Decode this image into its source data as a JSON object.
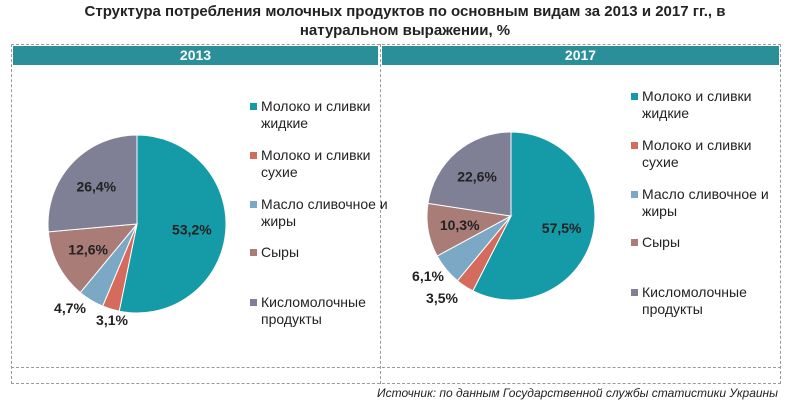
{
  "title": "Структура потребления молочных продуктов по основным видам за 2013 и 2017 гг., в натуральном выражении, %",
  "source": "Источник: по данным Государственной службы статистики Украины",
  "colors": {
    "band": "#2a8f99",
    "milk_liquid": "#159aa8",
    "milk_dry": "#d46b5c",
    "butter": "#7ba8c4",
    "cheese": "#a97c78",
    "sour_milk": "#7f7f95"
  },
  "chart_data": [
    {
      "type": "pie",
      "title": "2013",
      "legend_position": "right",
      "slices": [
        {
          "label": "Молоко и сливки жидкие",
          "value": 53.2,
          "value_label": "53,2%"
        },
        {
          "label": "Молоко и сливки сухие",
          "value": 3.1,
          "value_label": "3,1%"
        },
        {
          "label": "Масло сливочное и жиры",
          "value": 4.7,
          "value_label": "4,7%"
        },
        {
          "label": "Сыры",
          "value": 12.6,
          "value_label": "12,6%"
        },
        {
          "label": "Кисломолочные продукты",
          "value": 26.4,
          "value_label": "26,4%"
        }
      ]
    },
    {
      "type": "pie",
      "title": "2017",
      "legend_position": "right",
      "slices": [
        {
          "label": "Молоко и сливки жидкие",
          "value": 57.5,
          "value_label": "57,5%"
        },
        {
          "label": "Молоко и сливки сухие",
          "value": 3.5,
          "value_label": "3,5%"
        },
        {
          "label": "Масло сливочное и жиры",
          "value": 6.1,
          "value_label": "6,1%"
        },
        {
          "label": "Сыры",
          "value": 10.3,
          "value_label": "10,3%"
        },
        {
          "label": "Кисломолочные продукты",
          "value": 22.6,
          "value_label": "22,6%"
        }
      ]
    }
  ]
}
